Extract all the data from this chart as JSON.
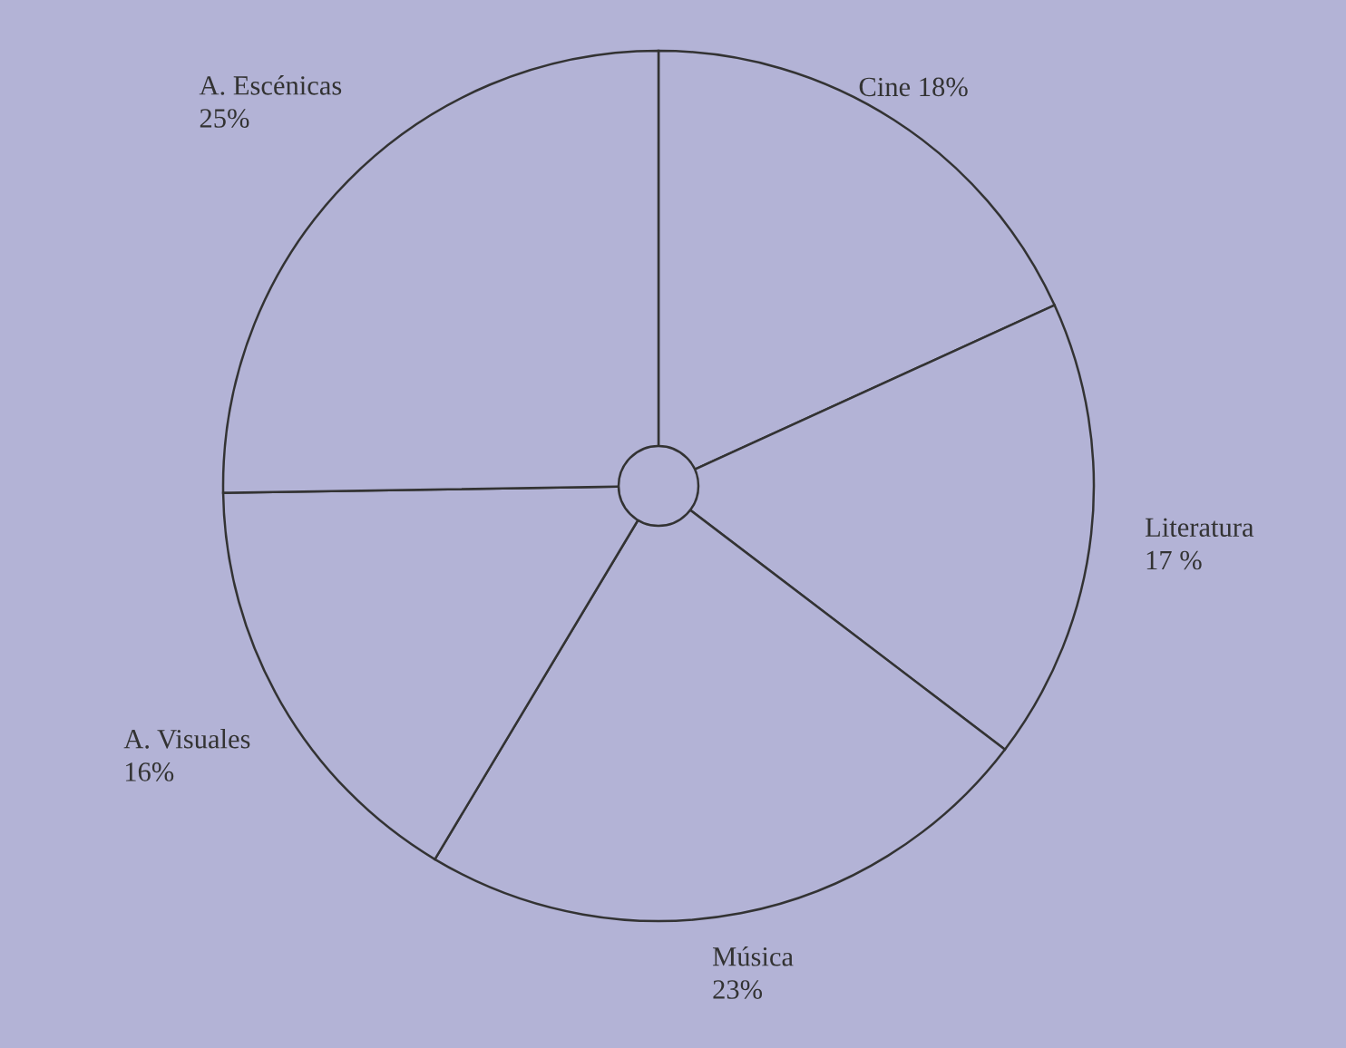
{
  "chart_data": {
    "type": "pie",
    "categories": [
      "Cine",
      "Literatura",
      "Música",
      "A. Visuales",
      "A. Escénicas"
    ],
    "values": [
      18,
      17,
      23,
      16,
      25
    ],
    "value_labels": [
      "18%",
      "17 %",
      "23%",
      "16%",
      "25%"
    ],
    "colors": [
      "#b3b3d6",
      "#b3b3d6",
      "#b3b3d6",
      "#b3b3d6",
      "#b3b3d6"
    ],
    "legend": false
  }
}
